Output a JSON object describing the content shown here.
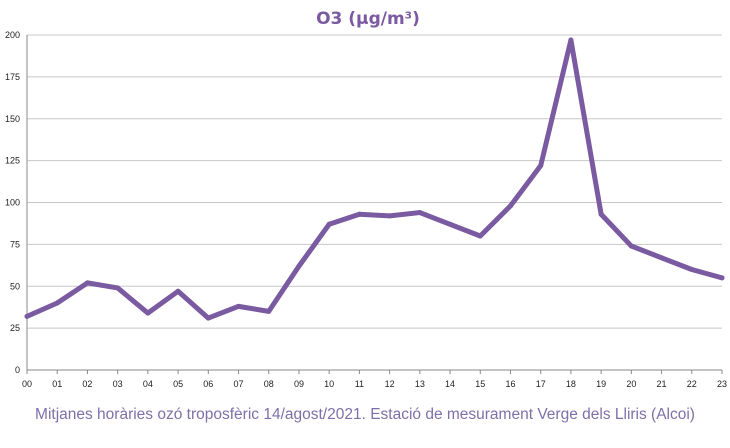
{
  "chart_data": {
    "type": "line",
    "title": "O3 (µg/m³)",
    "xlabel": "",
    "ylabel": "",
    "categories": [
      "00",
      "01",
      "02",
      "03",
      "04",
      "05",
      "06",
      "07",
      "08",
      "09",
      "10",
      "11",
      "12",
      "13",
      "14",
      "15",
      "16",
      "17",
      "18",
      "19",
      "20",
      "21",
      "22",
      "23"
    ],
    "series": [
      {
        "values": [
          32,
          40,
          52,
          49,
          34,
          47,
          31,
          38,
          35,
          62,
          87,
          93,
          92,
          94,
          87,
          80,
          98,
          122,
          197,
          93,
          74,
          67,
          60,
          55
        ],
        "color": "#7a5aa0"
      }
    ],
    "ylim": [
      0,
      200
    ],
    "yticks": [
      "0",
      "25",
      "50",
      "75",
      "100",
      "125",
      "150",
      "175",
      "200"
    ],
    "grid": true,
    "legend": "none"
  },
  "caption": "Mitjanes horàries ozó troposfèric 14/agost/2021. Estació de mesurament Verge dels Lliris (Alcoi)"
}
